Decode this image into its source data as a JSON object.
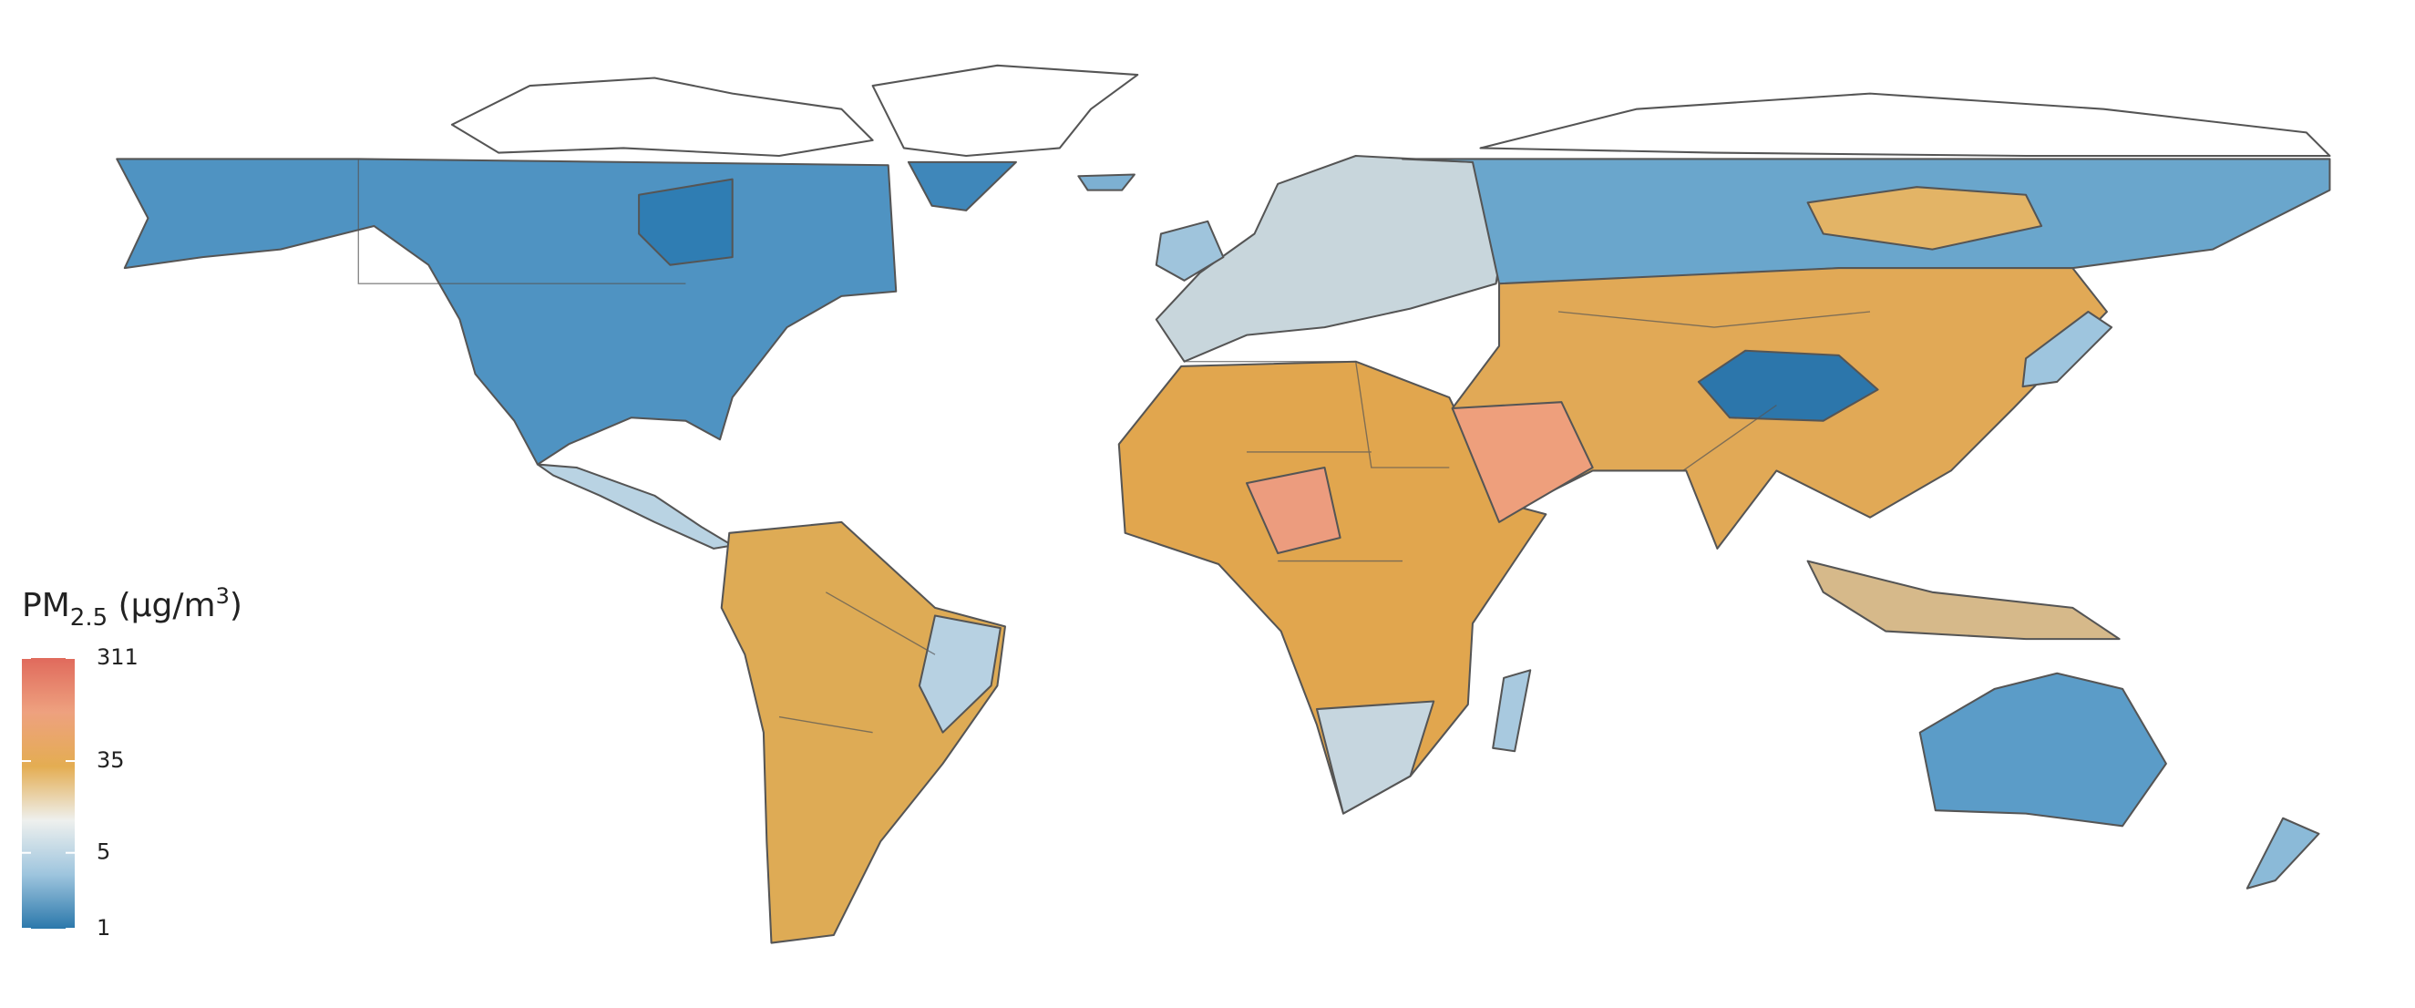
{
  "legend": {
    "title": {
      "base": "PM",
      "sub": "2.5",
      "unit": " (µg/m",
      "sup": "3",
      "close": ")"
    },
    "scale": "log",
    "lim": [
      1,
      311
    ],
    "ticks": [
      1,
      5,
      35,
      311
    ],
    "colors": [
      "#2b78ab",
      "#9ec5de",
      "#eef0ee",
      "#e4ad52",
      "#eea17f",
      "#e06a5c"
    ]
  }
}
